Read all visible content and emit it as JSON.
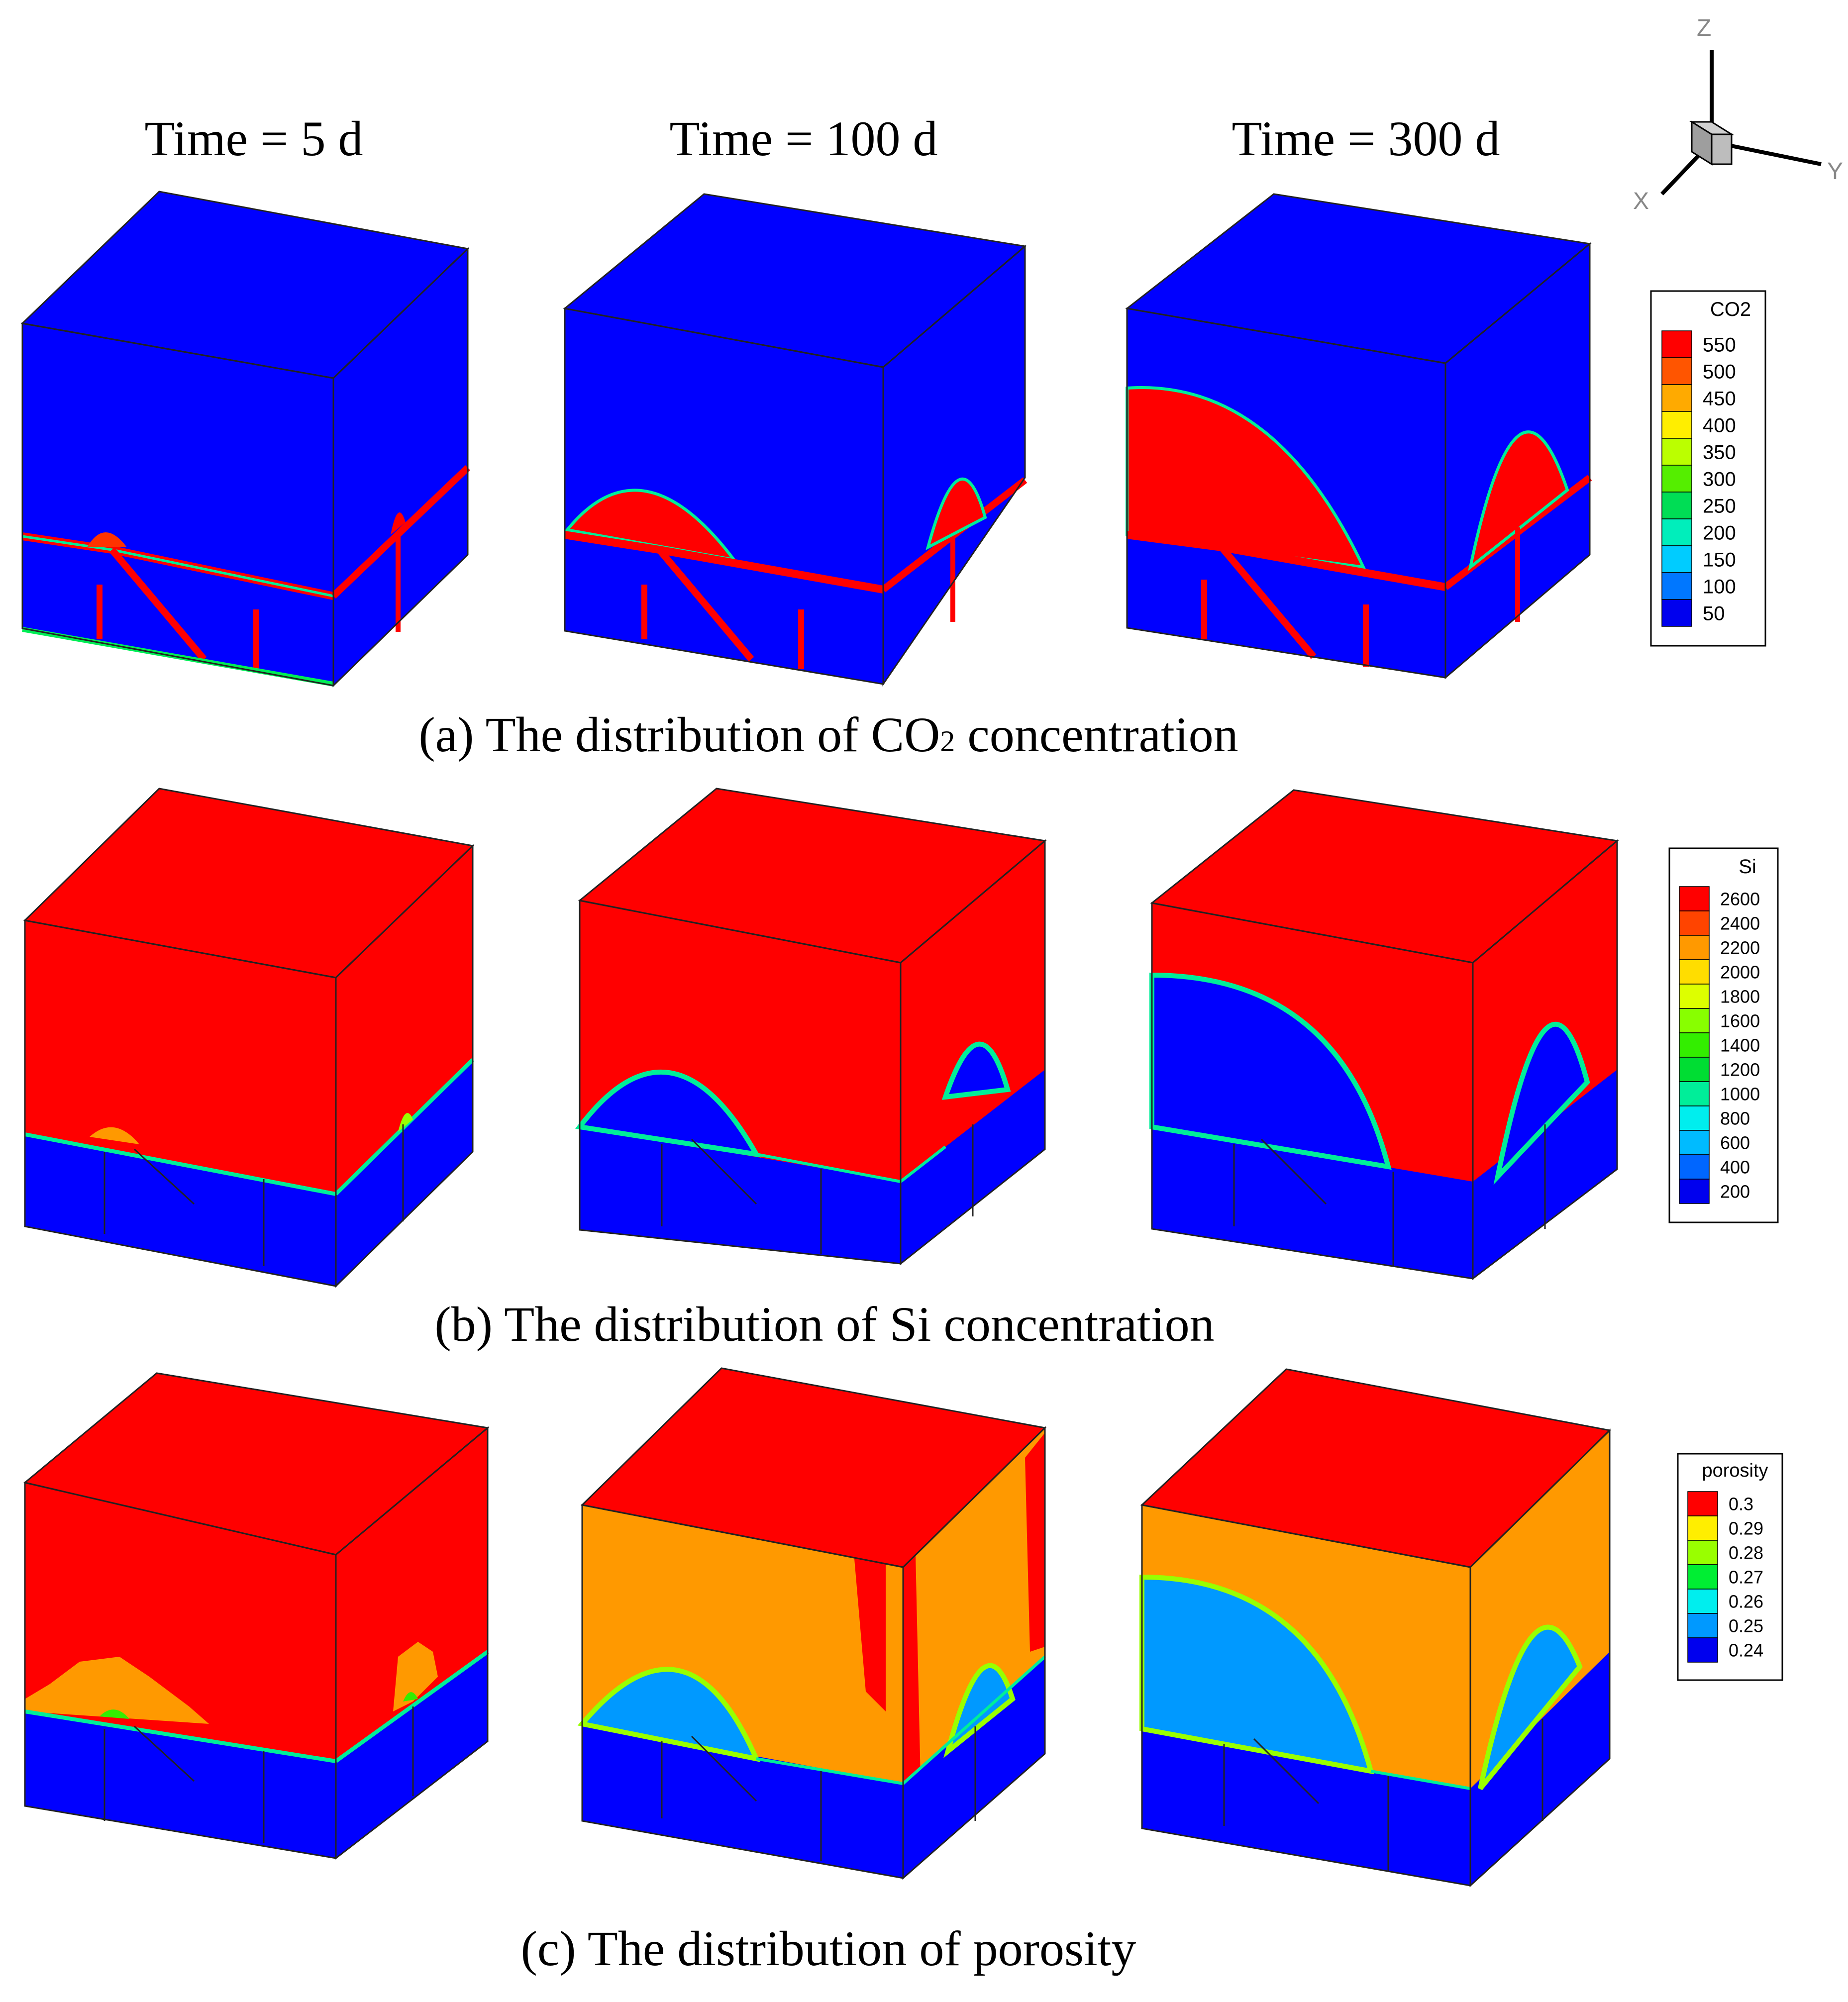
{
  "time_labels": [
    "Time = 5 d",
    "Time = 100 d",
    "Time = 300 d"
  ],
  "captions": {
    "a_prefix": "(a) The distribution of CO",
    "a_sub": "2",
    "a_suffix": " concentration",
    "b": "(b) The distribution of Si concentration",
    "c": "(c) The distribution of porosity"
  },
  "axes": {
    "z": "Z",
    "y": "Y",
    "x": "X"
  },
  "colors": {
    "red": "#ff0000",
    "blue": "#0000ff",
    "orange": "#ff9900",
    "lightblue": "#0099ff",
    "outline": "#222222",
    "frame": "#000000"
  },
  "legends": {
    "co2": {
      "title": "CO2",
      "levels": [
        "550",
        "500",
        "450",
        "400",
        "350",
        "300",
        "250",
        "200",
        "150",
        "100",
        "50"
      ],
      "colors": [
        "#ff0000",
        "#ff5500",
        "#ffaa00",
        "#ffee00",
        "#bbff00",
        "#55ee00",
        "#00dd55",
        "#00eebb",
        "#00ccff",
        "#0077ff",
        "#0000ee"
      ]
    },
    "si": {
      "title": "Si",
      "levels": [
        "2600",
        "2400",
        "2200",
        "2000",
        "1800",
        "1600",
        "1400",
        "1200",
        "1000",
        "800",
        "600",
        "400",
        "200"
      ],
      "colors": [
        "#ff0000",
        "#ff4400",
        "#ff9900",
        "#ffdd00",
        "#ddff00",
        "#88ff00",
        "#33ee00",
        "#00dd33",
        "#00ee99",
        "#00eeee",
        "#00bbff",
        "#0066ff",
        "#0000ee"
      ]
    },
    "porosity": {
      "title": "porosity",
      "levels": [
        "0.3",
        "0.29",
        "0.28",
        "0.27",
        "0.26",
        "0.25",
        "0.24"
      ],
      "colors": [
        "#ff0000",
        "#ffee00",
        "#99ff00",
        "#00ee33",
        "#00eeee",
        "#0099ff",
        "#0000ee"
      ]
    }
  }
}
